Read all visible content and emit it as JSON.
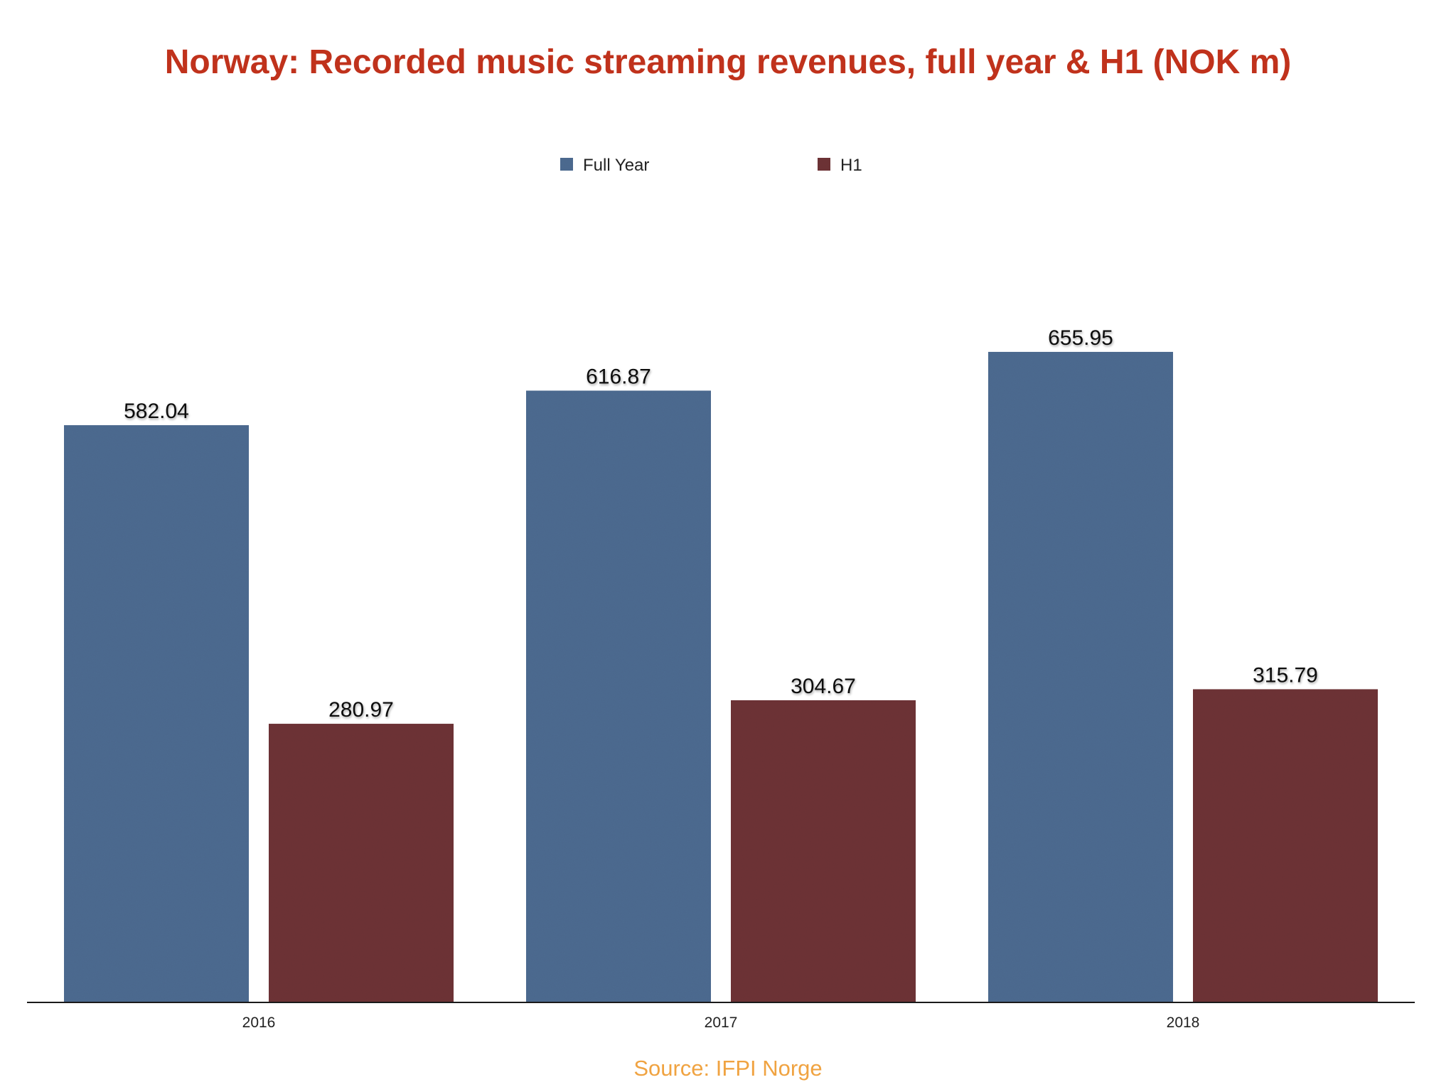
{
  "chart_data": {
    "type": "bar",
    "title": "Norway: Recorded music streaming revenues, full year & H1 (NOK m)",
    "categories": [
      "2016",
      "2017",
      "2018"
    ],
    "series": [
      {
        "name": "Full Year",
        "values": [
          582.04,
          616.87,
          655.95
        ],
        "color": "#4d6b91"
      },
      {
        "name": "H1",
        "values": [
          280.97,
          304.67,
          315.79
        ],
        "color": "#6e3236"
      }
    ],
    "value_labels": [
      [
        "582.04",
        "616.87",
        "655.95"
      ],
      [
        "280.97",
        "304.67",
        "315.79"
      ]
    ],
    "xlabel": "",
    "ylabel": "",
    "ylim": [
      0,
      800
    ],
    "grid": false,
    "legend_position": "top-center"
  },
  "source": "Source: IFPI Norge"
}
